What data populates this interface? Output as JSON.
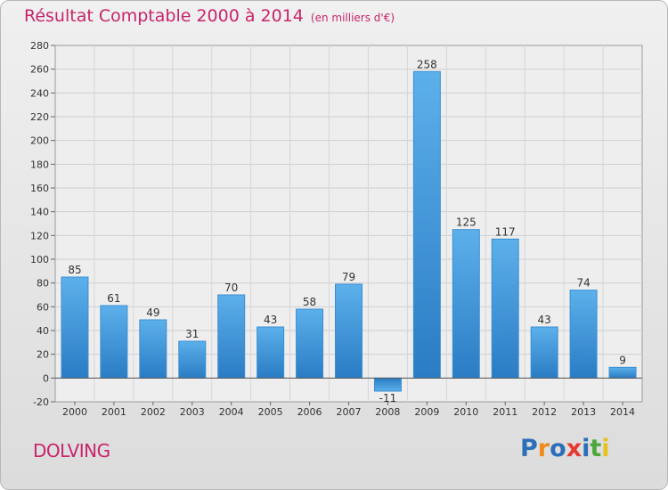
{
  "title": "Résultat Comptable 2000 à 2014",
  "subtitle": "(en milliers d'€)",
  "place": "DOLVING",
  "logo": {
    "letters": [
      "P",
      "r",
      "o",
      "x",
      "i",
      "t",
      "i"
    ],
    "colors": [
      "#2c6fb8",
      "#f08a1c",
      "#2c6fb8",
      "#e63a2f",
      "#2c6fb8",
      "#4aa83c",
      "#e8c11c"
    ]
  },
  "chart_data": {
    "type": "bar",
    "title": "Résultat Comptable 2000 à 2014",
    "categories": [
      "2000",
      "2001",
      "2002",
      "2003",
      "2004",
      "2005",
      "2006",
      "2007",
      "2008",
      "2009",
      "2010",
      "2011",
      "2012",
      "2013",
      "2014"
    ],
    "values": [
      85,
      61,
      49,
      31,
      70,
      43,
      58,
      79,
      -11,
      258,
      125,
      117,
      43,
      74,
      9
    ],
    "ylim": [
      -20,
      280
    ],
    "yticks": [
      -20,
      0,
      20,
      40,
      60,
      80,
      100,
      120,
      140,
      160,
      180,
      200,
      220,
      240,
      260,
      280
    ],
    "grid": true,
    "bar_color": "#4a9ee0"
  }
}
